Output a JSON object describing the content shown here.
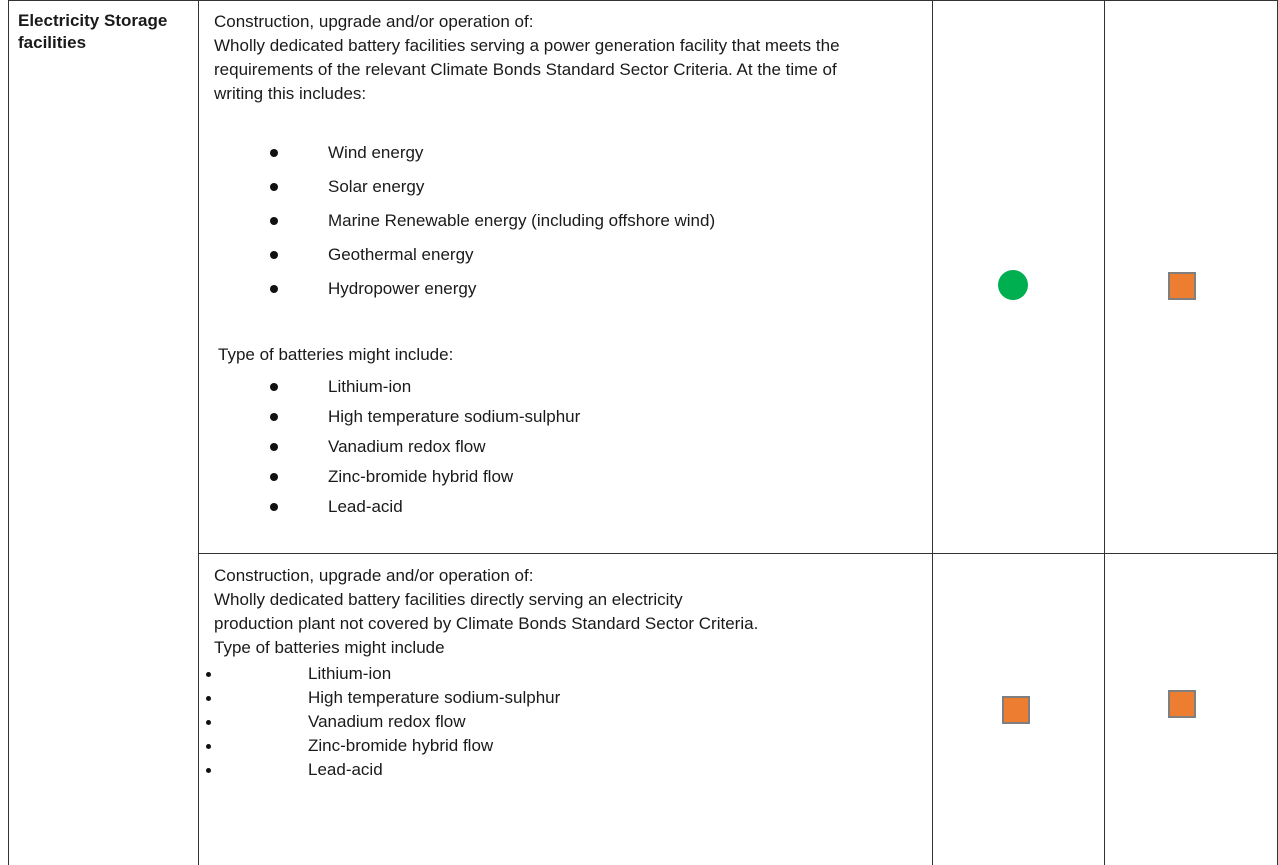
{
  "category": "Electricity Storage facilities",
  "rows": [
    {
      "intro": "Construction, upgrade and/or operation of:",
      "description": "Wholly dedicated battery facilities serving a power generation facility that meets the requirements of the relevant Climate Bonds Standard Sector Criteria. At the time of writing this includes:",
      "energy_sources": [
        "Wind energy",
        "Solar energy",
        "Marine Renewable energy (including offshore wind)",
        "Geothermal energy",
        "Hydropower energy"
      ],
      "battery_heading": "Type of batteries might include:",
      "battery_types": [
        "Lithium-ion",
        "High temperature sodium-sulphur",
        "Vanadium redox flow",
        "Zinc-bromide hybrid flow",
        "Lead-acid"
      ],
      "indicator_1": {
        "shape": "circle",
        "color": "#00b050"
      },
      "indicator_2": {
        "shape": "square",
        "color": "#ed7d31"
      }
    },
    {
      "intro": "Construction, upgrade and/or operation of:",
      "description_lines": [
        "Wholly dedicated battery facilities directly serving an electricity",
        "production plant not covered by Climate Bonds Standard Sector Criteria."
      ],
      "battery_heading": "Type of batteries might include",
      "battery_types": [
        "Lithium-ion",
        "High temperature sodium-sulphur",
        "Vanadium redox flow",
        "Zinc-bromide hybrid flow",
        "Lead-acid"
      ],
      "indicator_1": {
        "shape": "square",
        "color": "#ed7d31"
      },
      "indicator_2": {
        "shape": "square",
        "color": "#ed7d31"
      }
    }
  ]
}
